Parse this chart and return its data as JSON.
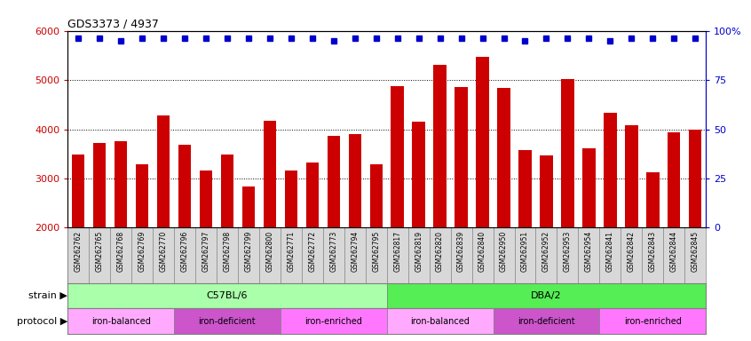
{
  "title": "GDS3373 / 4937",
  "samples": [
    "GSM262762",
    "GSM262765",
    "GSM262768",
    "GSM262769",
    "GSM262770",
    "GSM262796",
    "GSM262797",
    "GSM262798",
    "GSM262799",
    "GSM262800",
    "GSM262771",
    "GSM262772",
    "GSM262773",
    "GSM262794",
    "GSM262795",
    "GSM262817",
    "GSM262819",
    "GSM262820",
    "GSM262839",
    "GSM262840",
    "GSM262950",
    "GSM262951",
    "GSM262952",
    "GSM262953",
    "GSM262954",
    "GSM262841",
    "GSM262842",
    "GSM262843",
    "GSM262844",
    "GSM262845"
  ],
  "bar_values": [
    3480,
    3720,
    3760,
    3290,
    4280,
    3680,
    3170,
    3480,
    2840,
    4170,
    3160,
    3320,
    3870,
    3900,
    3280,
    4870,
    4160,
    5310,
    4850,
    5470,
    4830,
    3580,
    3470,
    5010,
    3610,
    4330,
    4090,
    3130,
    3940,
    4000
  ],
  "percentile_values": [
    96,
    96,
    95,
    96,
    96,
    96,
    96,
    96,
    96,
    96,
    96,
    96,
    95,
    96,
    96,
    96,
    96,
    96,
    96,
    96,
    96,
    95,
    96,
    96,
    96,
    95,
    96,
    96,
    96,
    96
  ],
  "bar_color": "#cc0000",
  "percentile_color": "#0000cc",
  "ylim_left": [
    2000,
    6000
  ],
  "ylim_right": [
    0,
    100
  ],
  "yticks_left": [
    2000,
    3000,
    4000,
    5000,
    6000
  ],
  "yticks_right": [
    0,
    25,
    50,
    75,
    100
  ],
  "strain_groups": [
    {
      "label": "C57BL/6",
      "start": 0,
      "end": 15,
      "color": "#aaffaa"
    },
    {
      "label": "DBA/2",
      "start": 15,
      "end": 30,
      "color": "#55ee55"
    }
  ],
  "protocol_groups": [
    {
      "label": "iron-balanced",
      "start": 0,
      "end": 5,
      "color": "#ffaaff"
    },
    {
      "label": "iron-deficient",
      "start": 5,
      "end": 10,
      "color": "#dd55dd"
    },
    {
      "label": "iron-enriched",
      "start": 10,
      "end": 15,
      "color": "#ff88ff"
    },
    {
      "label": "iron-balanced",
      "start": 15,
      "end": 20,
      "color": "#ffaaff"
    },
    {
      "label": "iron-deficient",
      "start": 20,
      "end": 25,
      "color": "#dd55dd"
    },
    {
      "label": "iron-enriched",
      "start": 25,
      "end": 30,
      "color": "#ff88ff"
    }
  ],
  "strain_label": "strain",
  "protocol_label": "protocol",
  "background_color": "#ffffff",
  "xticklabel_bg": "#d8d8d8"
}
